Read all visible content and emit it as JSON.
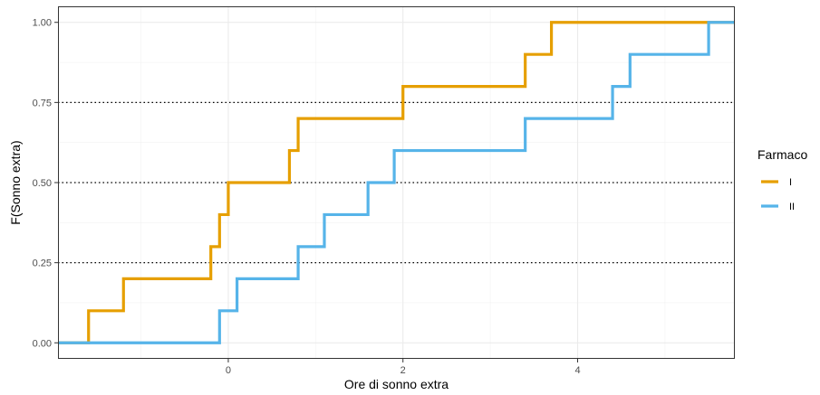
{
  "chart_data": {
    "type": "line",
    "step": true,
    "xlabel": "Ore di sonno extra",
    "ylabel": "F(Sonno extra)",
    "xlim": [
      -1.95,
      5.8
    ],
    "ylim": [
      -0.05,
      1.05
    ],
    "x_ticks": [
      0,
      2,
      4
    ],
    "x_tick_labels": [
      "0",
      "2",
      "4"
    ],
    "y_ticks": [
      0,
      0.25,
      0.5,
      0.75,
      1
    ],
    "y_tick_labels": [
      "0.00",
      "0.25",
      "0.50",
      "0.75",
      "1.00"
    ],
    "grid": true,
    "reference_lines": [
      0.25,
      0.5,
      0.75
    ],
    "legend": {
      "title": "Farmaco",
      "position": "right"
    },
    "series": [
      {
        "name": "I",
        "color": "#E69F00",
        "x": [
          -1.6,
          -1.2,
          -0.2,
          -0.1,
          0.0,
          0.7,
          0.8,
          2.0,
          3.4,
          3.7
        ],
        "y": [
          0.1,
          0.2,
          0.3,
          0.4,
          0.5,
          0.6,
          0.7,
          0.8,
          0.9,
          1.0
        ]
      },
      {
        "name": "II",
        "color": "#56B4E9",
        "x": [
          -0.1,
          0.1,
          0.8,
          1.1,
          1.6,
          1.9,
          3.4,
          4.4,
          4.6,
          5.5
        ],
        "y": [
          0.1,
          0.2,
          0.3,
          0.4,
          0.5,
          0.6,
          0.7,
          0.8,
          0.9,
          1.0
        ]
      }
    ]
  }
}
